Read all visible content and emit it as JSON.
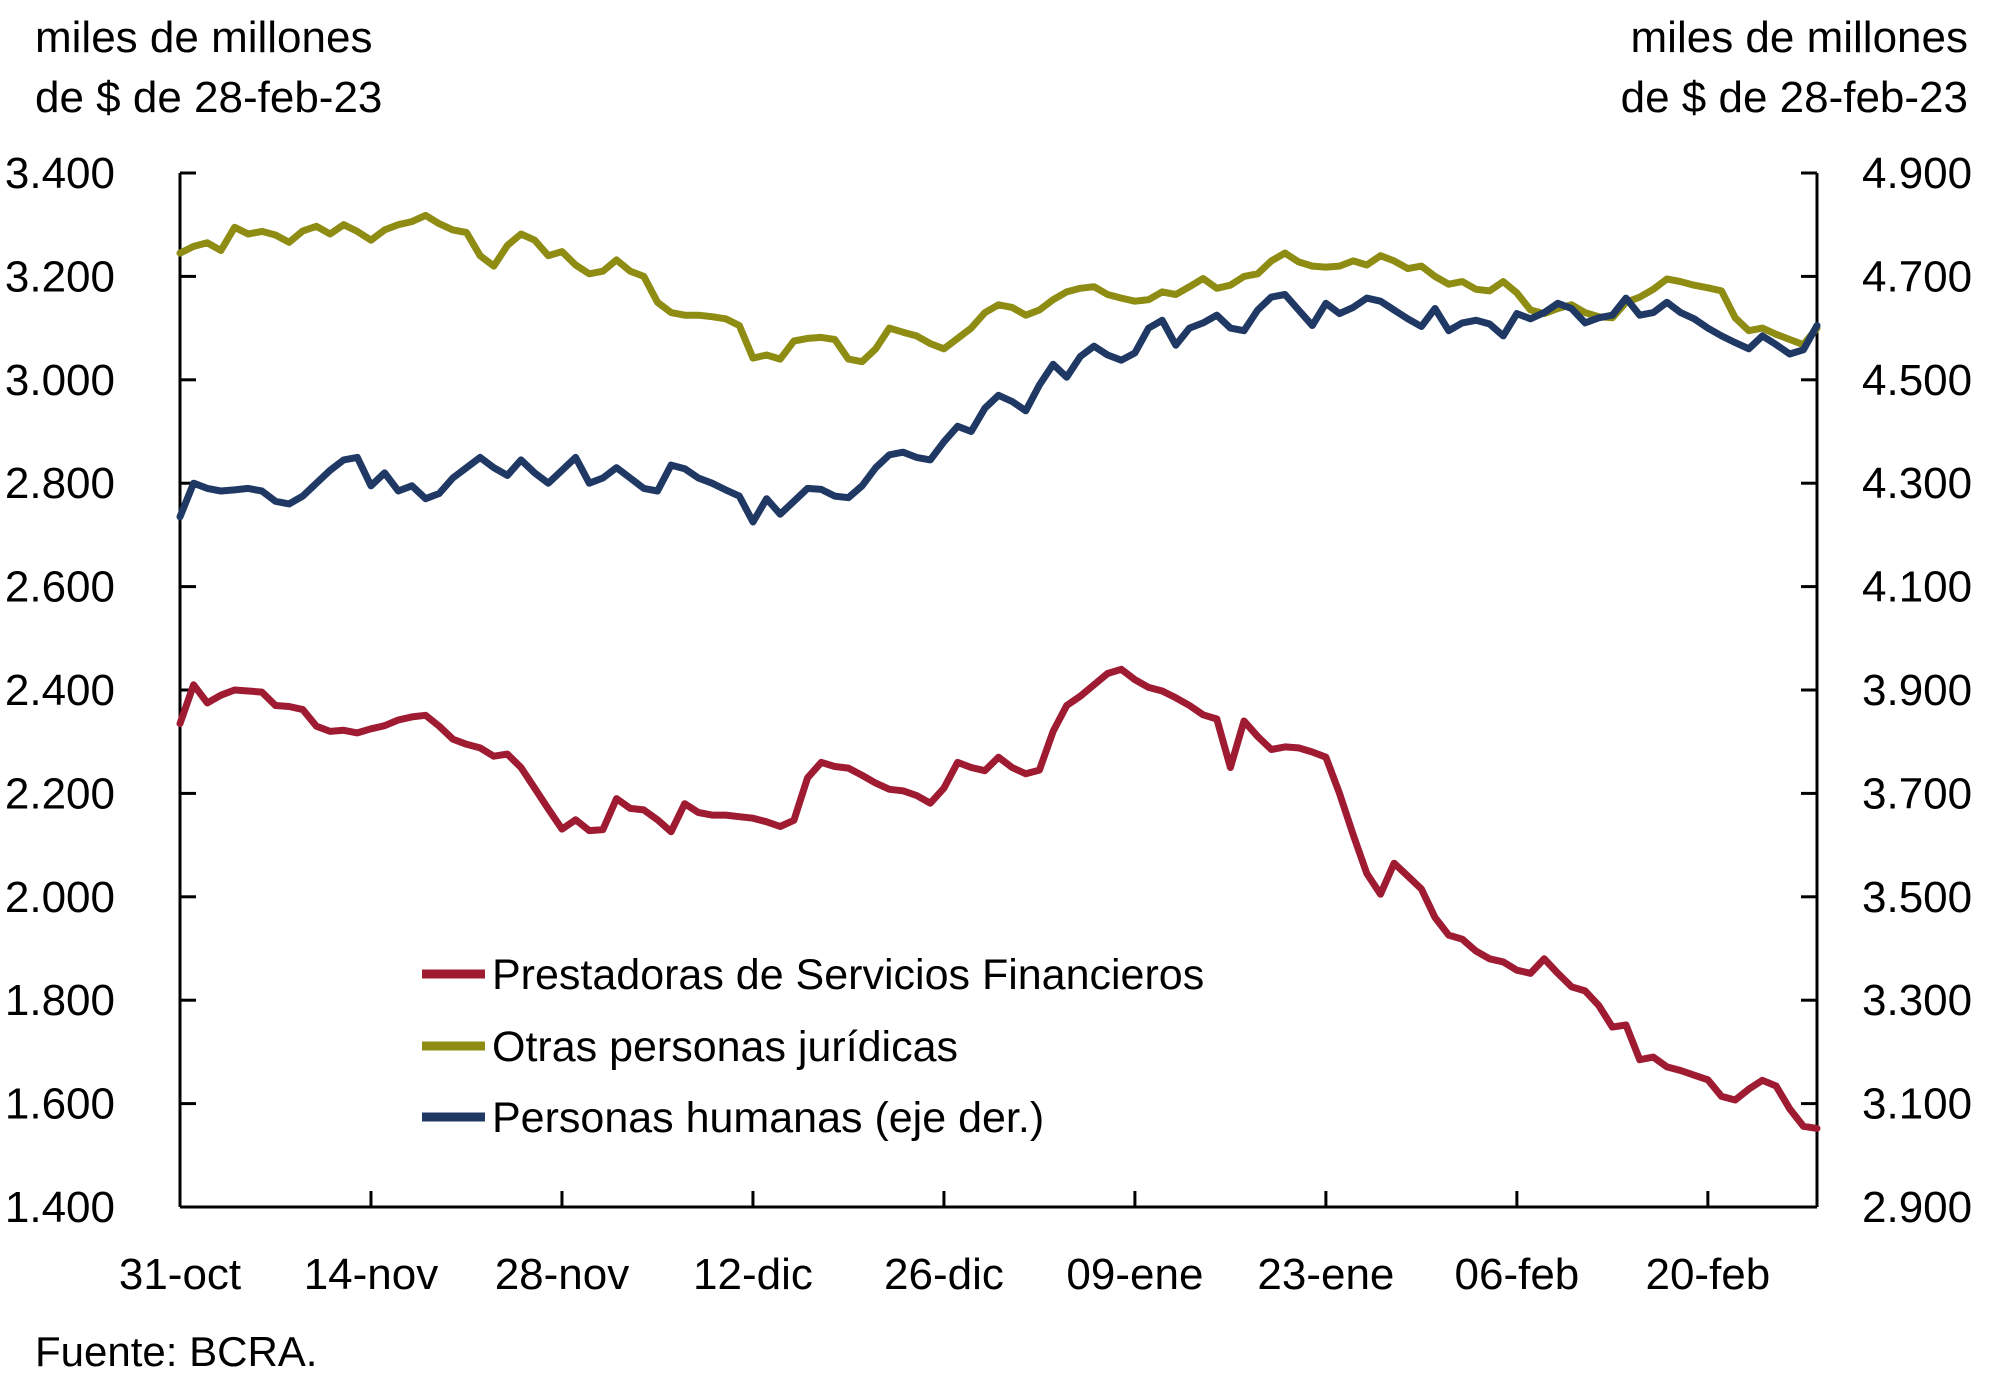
{
  "chart_data": {
    "type": "line",
    "left_axis_title_line1": "miles de millones",
    "left_axis_title_line2": "de $ de 28-feb-23",
    "right_axis_title_line1": "miles de millones",
    "right_axis_title_line2": "de $ de 28-feb-23",
    "source": "Fuente: BCRA.",
    "grid": "off",
    "legend_position": "inside-bottom-left",
    "left_axis": {
      "min": 1400,
      "max": 3400,
      "step": 200,
      "tick_labels": [
        "3.400",
        "3.200",
        "3.000",
        "2.800",
        "2.600",
        "2.400",
        "2.200",
        "2.000",
        "1.800",
        "1.600",
        "1.400"
      ]
    },
    "right_axis": {
      "min": 2900,
      "max": 4900,
      "step": 200,
      "tick_labels": [
        "4.900",
        "4.700",
        "4.500",
        "4.300",
        "4.100",
        "3.900",
        "3.700",
        "3.500",
        "3.300",
        "3.100",
        "2.900"
      ]
    },
    "x_days_total": 120,
    "x_ticks": [
      {
        "day": 0,
        "label": "31-oct"
      },
      {
        "day": 14,
        "label": "14-nov"
      },
      {
        "day": 28,
        "label": "28-nov"
      },
      {
        "day": 42,
        "label": "12-dic"
      },
      {
        "day": 56,
        "label": "26-dic"
      },
      {
        "day": 70,
        "label": "09-ene"
      },
      {
        "day": 84,
        "label": "23-ene"
      },
      {
        "day": 98,
        "label": "06-feb"
      },
      {
        "day": 112,
        "label": "20-feb"
      }
    ],
    "series": [
      {
        "name": "Prestadoras de Servicios Financieros",
        "axis": "left",
        "color": "#9f1b32",
        "values": [
          2335,
          2410,
          2375,
          2390,
          2400,
          2398,
          2396,
          2370,
          2368,
          2362,
          2330,
          2320,
          2322,
          2317,
          2325,
          2331,
          2342,
          2348,
          2351,
          2330,
          2305,
          2295,
          2288,
          2272,
          2276,
          2250,
          2210,
          2170,
          2131,
          2149,
          2128,
          2130,
          2190,
          2171,
          2168,
          2149,
          2126,
          2180,
          2163,
          2158,
          2158,
          2155,
          2152,
          2145,
          2136,
          2148,
          2230,
          2260,
          2252,
          2249,
          2235,
          2220,
          2208,
          2205,
          2196,
          2181,
          2210,
          2260,
          2250,
          2244,
          2270,
          2250,
          2238,
          2245,
          2320,
          2370,
          2388,
          2410,
          2432,
          2440,
          2420,
          2405,
          2398,
          2385,
          2370,
          2352,
          2344,
          2250,
          2340,
          2310,
          2285,
          2290,
          2288,
          2280,
          2270,
          2200,
          2120,
          2045,
          2005,
          2065,
          2040,
          2015,
          1960,
          1926,
          1918,
          1895,
          1880,
          1874,
          1858,
          1852,
          1880,
          1852,
          1826,
          1818,
          1790,
          1748,
          1752,
          1685,
          1690,
          1671,
          1664,
          1655,
          1646,
          1614,
          1607,
          1628,
          1645,
          1634,
          1590,
          1556,
          1552
        ]
      },
      {
        "name": "Otras personas jurídicas",
        "axis": "left",
        "color": "#8e8c13",
        "values": [
          3245,
          3258,
          3265,
          3250,
          3295,
          3282,
          3287,
          3280,
          3266,
          3288,
          3297,
          3282,
          3300,
          3287,
          3270,
          3290,
          3300,
          3306,
          3318,
          3302,
          3290,
          3285,
          3240,
          3220,
          3260,
          3282,
          3270,
          3240,
          3248,
          3222,
          3205,
          3210,
          3232,
          3210,
          3200,
          3150,
          3130,
          3125,
          3125,
          3122,
          3118,
          3105,
          3042,
          3048,
          3040,
          3075,
          3080,
          3082,
          3078,
          3040,
          3035,
          3060,
          3100,
          3092,
          3085,
          3070,
          3060,
          3080,
          3100,
          3130,
          3145,
          3140,
          3125,
          3135,
          3155,
          3170,
          3177,
          3180,
          3165,
          3158,
          3152,
          3155,
          3170,
          3165,
          3180,
          3196,
          3177,
          3183,
          3200,
          3205,
          3230,
          3245,
          3228,
          3220,
          3218,
          3220,
          3230,
          3222,
          3240,
          3230,
          3215,
          3220,
          3200,
          3185,
          3190,
          3175,
          3172,
          3190,
          3168,
          3135,
          3128,
          3138,
          3145,
          3130,
          3122,
          3120,
          3150,
          3160,
          3175,
          3195,
          3190,
          3183,
          3178,
          3172,
          3120,
          3095,
          3100,
          3088,
          3078,
          3068,
          3100
        ]
      },
      {
        "name": "Personas humanas (eje der.)",
        "axis": "right",
        "color": "#1f3864",
        "values": [
          4235,
          4300,
          4290,
          4285,
          4287,
          4290,
          4285,
          4265,
          4260,
          4275,
          4300,
          4325,
          4345,
          4350,
          4295,
          4320,
          4285,
          4295,
          4270,
          4280,
          4310,
          4330,
          4350,
          4330,
          4315,
          4345,
          4320,
          4300,
          4325,
          4350,
          4300,
          4310,
          4330,
          4310,
          4290,
          4285,
          4335,
          4328,
          4310,
          4300,
          4287,
          4275,
          4225,
          4270,
          4240,
          4265,
          4290,
          4288,
          4275,
          4272,
          4295,
          4330,
          4355,
          4360,
          4350,
          4345,
          4380,
          4410,
          4400,
          4445,
          4470,
          4458,
          4440,
          4490,
          4530,
          4505,
          4545,
          4565,
          4548,
          4538,
          4552,
          4600,
          4615,
          4567,
          4600,
          4610,
          4625,
          4600,
          4595,
          4635,
          4660,
          4665,
          4635,
          4605,
          4648,
          4628,
          4640,
          4658,
          4652,
          4635,
          4618,
          4603,
          4638,
          4595,
          4610,
          4615,
          4608,
          4585,
          4628,
          4618,
          4630,
          4648,
          4638,
          4610,
          4620,
          4625,
          4658,
          4625,
          4630,
          4650,
          4630,
          4618,
          4600,
          4585,
          4572,
          4560,
          4585,
          4568,
          4550,
          4558,
          4605
        ]
      }
    ]
  }
}
